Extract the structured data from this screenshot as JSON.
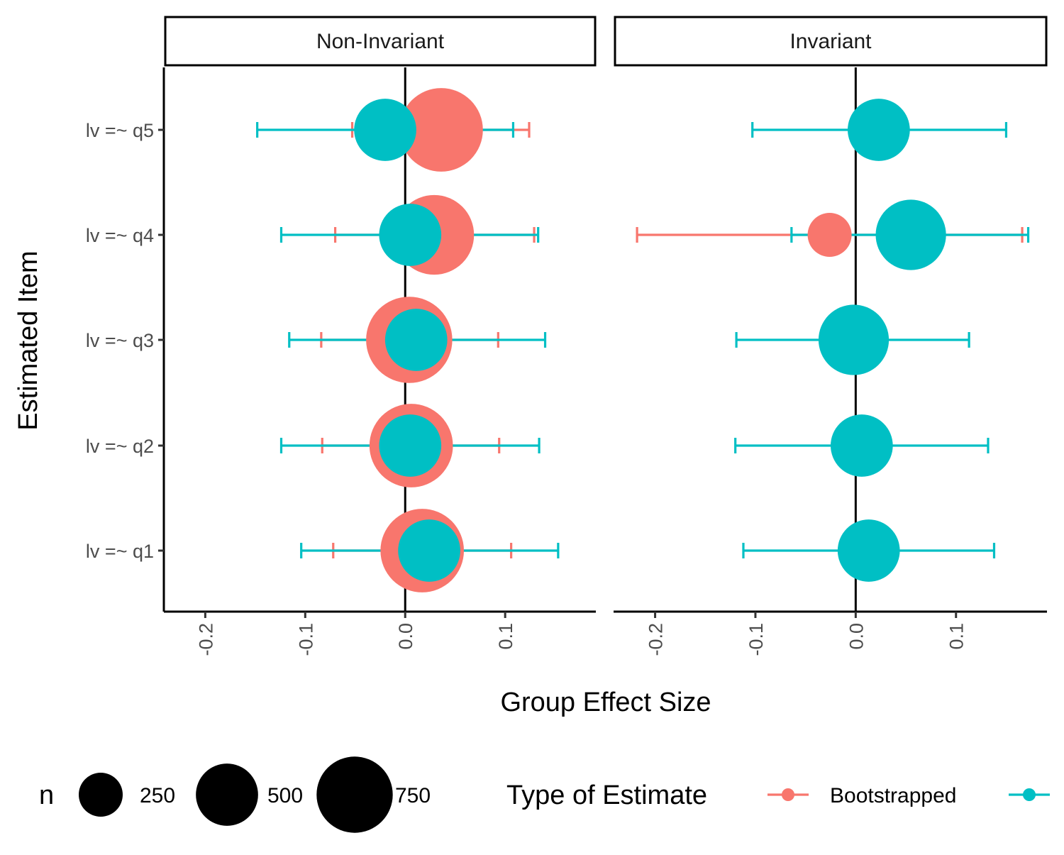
{
  "chart_data": {
    "type": "scatter",
    "subtype": "dot-and-errorbar (faceted)",
    "xlabel": "Group Effect Size",
    "ylabel": "Estimated Item",
    "xlim": [
      -0.24,
      0.19
    ],
    "x_ticks": [
      -0.2,
      -0.1,
      0.0,
      0.1
    ],
    "x_tick_labels": [
      "-0.2",
      "-0.1",
      "0.0",
      "0.1"
    ],
    "x_tick_rotation_deg": -90,
    "categories": [
      "lv =~ q5",
      "lv =~ q4",
      "lv =~ q3",
      "lv =~ q2",
      "lv =~ q1"
    ],
    "reference_line_x": 0,
    "grid": false,
    "colors": {
      "Bootstrapped": "#F8766D",
      "other": "#00BFC4"
    },
    "size_legend": {
      "title": "n",
      "levels": [
        250,
        500,
        750
      ],
      "labels": [
        "250",
        "500",
        "750"
      ]
    },
    "color_legend": {
      "title": "Type of Estimate",
      "entries": [
        "Bootstrapped",
        ""
      ],
      "placement": "bottom"
    },
    "panels": [
      {
        "name": "Non-Invariant",
        "series": [
          {
            "type": "Bootstrapped",
            "points": [
              {
                "item": "lv =~ q5",
                "x": 0.036,
                "lo": -0.053,
                "hi": 0.124,
                "n": 900
              },
              {
                "item": "lv =~ q4",
                "x": 0.029,
                "lo": -0.07,
                "hi": 0.129,
                "n": 820
              },
              {
                "item": "lv =~ q3",
                "x": 0.004,
                "lo": -0.084,
                "hi": 0.093,
                "n": 960
              },
              {
                "item": "lv =~ q2",
                "x": 0.006,
                "lo": -0.083,
                "hi": 0.094,
                "n": 900
              },
              {
                "item": "lv =~ q1",
                "x": 0.017,
                "lo": -0.072,
                "hi": 0.106,
                "n": 900
              }
            ]
          },
          {
            "type": "",
            "points": [
              {
                "item": "lv =~ q5",
                "x": -0.02,
                "lo": -0.148,
                "hi": 0.108,
                "n": 500
              },
              {
                "item": "lv =~ q4",
                "x": 0.005,
                "lo": -0.124,
                "hi": 0.133,
                "n": 500
              },
              {
                "item": "lv =~ q3",
                "x": 0.011,
                "lo": -0.116,
                "hi": 0.14,
                "n": 500
              },
              {
                "item": "lv =~ q2",
                "x": 0.005,
                "lo": -0.124,
                "hi": 0.134,
                "n": 500
              },
              {
                "item": "lv =~ q1",
                "x": 0.024,
                "lo": -0.104,
                "hi": 0.153,
                "n": 500
              }
            ]
          }
        ]
      },
      {
        "name": "Invariant",
        "series": [
          {
            "type": "Bootstrapped",
            "points": [
              {
                "item": "lv =~ q4",
                "x": -0.026,
                "lo": -0.218,
                "hi": 0.166,
                "n": 250
              }
            ]
          },
          {
            "type": "",
            "points": [
              {
                "item": "lv =~ q5",
                "x": 0.023,
                "lo": -0.103,
                "hi": 0.15,
                "n": 500
              },
              {
                "item": "lv =~ q4",
                "x": 0.055,
                "lo": -0.064,
                "hi": 0.172,
                "n": 640
              },
              {
                "item": "lv =~ q3",
                "x": -0.002,
                "lo": -0.119,
                "hi": 0.113,
                "n": 640
              },
              {
                "item": "lv =~ q2",
                "x": 0.006,
                "lo": -0.12,
                "hi": 0.132,
                "n": 500
              },
              {
                "item": "lv =~ q1",
                "x": 0.013,
                "lo": -0.112,
                "hi": 0.138,
                "n": 500
              }
            ]
          }
        ]
      }
    ]
  }
}
